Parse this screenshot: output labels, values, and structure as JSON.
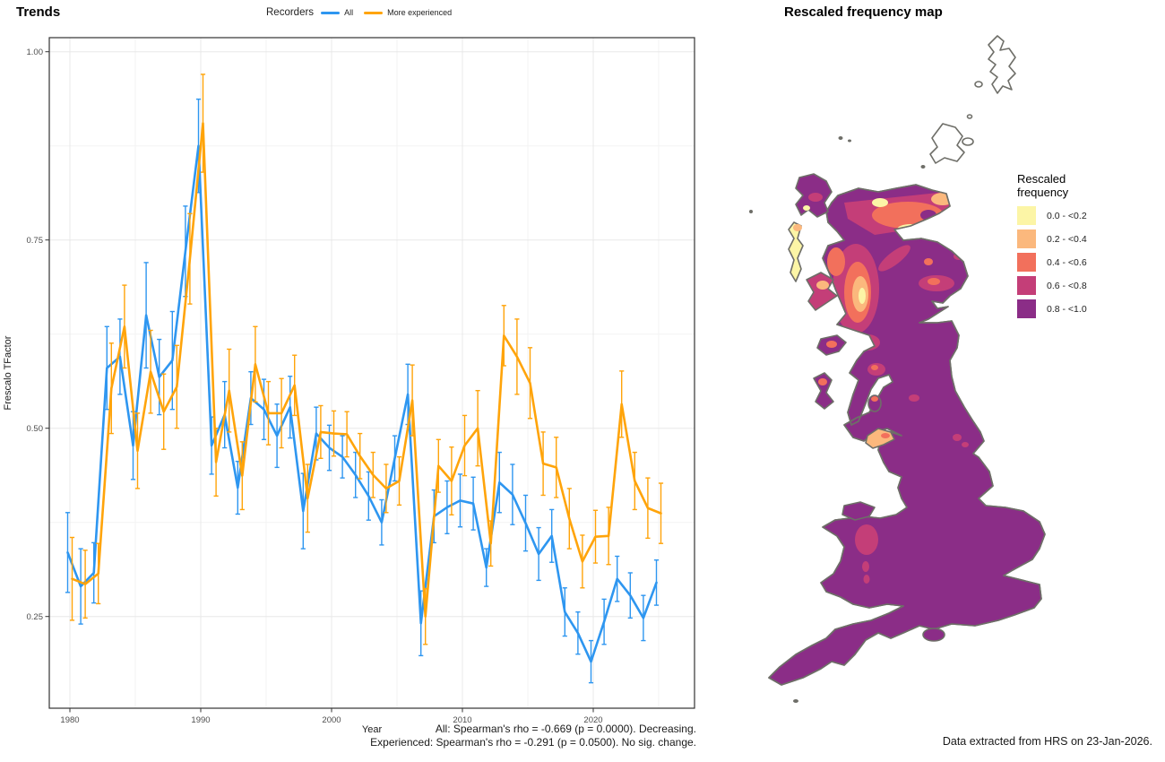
{
  "trends": {
    "title": "Trends",
    "legend": {
      "title": "Recorders",
      "items": [
        {
          "label": "All",
          "color": "#2E96F0"
        },
        {
          "label": "More experienced",
          "color": "#FFA40A"
        }
      ]
    },
    "x_label": "Year",
    "y_label": "Frescalo TFactor",
    "caption_lines": [
      "All: Spearman's rho = -0.669 (p = 0.0000). Decreasing.",
      "Experienced: Spearman's rho = -0.291 (p = 0.0500). No sig. change."
    ]
  },
  "chart_data": {
    "type": "line",
    "title": "Trends",
    "xlabel": "Year",
    "ylabel": "Frescalo TFactor",
    "grid": "major+minor",
    "legend_position": "top",
    "xlim": [
      1978.4,
      2027.7
    ],
    "ylim": [
      0.128,
      1.019
    ],
    "x_ticks": [
      1980,
      1990,
      2000,
      2010,
      2020
    ],
    "x_minor_ticks": [
      1985,
      1995,
      2005,
      2015,
      2025
    ],
    "y_ticks": [
      0.25,
      0.5,
      0.75,
      1.0
    ],
    "y_minor_ticks": [
      0.375,
      0.625,
      0.875
    ],
    "x": [
      1980,
      1981,
      1982,
      1983,
      1984,
      1985,
      1986,
      1987,
      1988,
      1989,
      1990,
      1991,
      1992,
      1993,
      1994,
      1995,
      1996,
      1997,
      1998,
      1999,
      2000,
      2001,
      2002,
      2003,
      2004,
      2005,
      2006,
      2007,
      2008,
      2009,
      2010,
      2011,
      2012,
      2013,
      2014,
      2015,
      2016,
      2017,
      2018,
      2019,
      2020,
      2021,
      2022,
      2023,
      2024,
      2025
    ],
    "series": [
      {
        "name": "All",
        "color": "#2E96F0",
        "values": [
          0.335,
          0.29,
          0.308,
          0.58,
          0.595,
          0.477,
          0.65,
          0.568,
          0.59,
          0.735,
          0.875,
          0.477,
          0.518,
          0.421,
          0.54,
          0.525,
          0.49,
          0.528,
          0.39,
          0.493,
          0.474,
          0.462,
          0.438,
          0.41,
          0.375,
          0.46,
          0.545,
          0.241,
          0.383,
          0.395,
          0.404,
          0.4,
          0.315,
          0.428,
          0.412,
          0.374,
          0.333,
          0.357,
          0.256,
          0.228,
          0.19,
          0.243,
          0.3,
          0.278,
          0.248,
          0.295
        ],
        "ci_half": [
          0.053,
          0.05,
          0.04,
          0.055,
          0.05,
          0.045,
          0.07,
          0.05,
          0.065,
          0.06,
          0.062,
          0.038,
          0.044,
          0.035,
          0.035,
          0.04,
          0.042,
          0.041,
          0.05,
          0.035,
          0.03,
          0.028,
          0.03,
          0.032,
          0.03,
          0.03,
          0.04,
          0.043,
          0.035,
          0.035,
          0.035,
          0.035,
          0.025,
          0.04,
          0.04,
          0.037,
          0.035,
          0.035,
          0.032,
          0.028,
          0.028,
          0.03,
          0.03,
          0.03,
          0.03,
          0.03
        ]
      },
      {
        "name": "More experienced",
        "color": "#FFA40A",
        "values": [
          0.3,
          0.293,
          0.307,
          0.553,
          0.635,
          0.47,
          0.575,
          0.522,
          0.555,
          0.725,
          0.905,
          0.455,
          0.55,
          0.437,
          0.585,
          0.52,
          0.52,
          0.557,
          0.407,
          0.495,
          0.493,
          0.492,
          0.463,
          0.438,
          0.42,
          0.43,
          0.537,
          0.25,
          0.45,
          0.43,
          0.477,
          0.5,
          0.347,
          0.623,
          0.595,
          0.56,
          0.453,
          0.448,
          0.38,
          0.323,
          0.356,
          0.357,
          0.532,
          0.43,
          0.394,
          0.387
        ],
        "ci_half": [
          0.055,
          0.045,
          0.04,
          0.06,
          0.055,
          0.05,
          0.055,
          0.05,
          0.055,
          0.06,
          0.065,
          0.045,
          0.055,
          0.045,
          0.05,
          0.042,
          0.046,
          0.04,
          0.045,
          0.035,
          0.03,
          0.03,
          0.03,
          0.03,
          0.032,
          0.032,
          0.047,
          0.037,
          0.035,
          0.045,
          0.04,
          0.05,
          0.03,
          0.04,
          0.05,
          0.047,
          0.042,
          0.04,
          0.04,
          0.035,
          0.035,
          0.038,
          0.044,
          0.038,
          0.04,
          0.04
        ]
      }
    ],
    "annotation": "All: Spearman's rho = -0.669 (p = 0.0000). Decreasing. | Experienced: Spearman's rho = -0.291 (p = 0.0500). No sig. change."
  },
  "map": {
    "title": "Rescaled frequency map",
    "legend_title": "Rescaled frequency",
    "legend_items": [
      {
        "label": "0.0 - <0.2",
        "color": "#FCF5A6"
      },
      {
        "label": "0.2 - <0.4",
        "color": "#FBB87D"
      },
      {
        "label": "0.4 - <0.6",
        "color": "#F2705C"
      },
      {
        "label": "0.6 - <0.8",
        "color": "#C43E78"
      },
      {
        "label": "0.8 - <1.0",
        "color": "#8B2D87"
      }
    ],
    "caption": "Data extracted from HRS on 23-Jan-2026.",
    "coast_color": "#6E6E68",
    "base_fill": "#8B2D87"
  },
  "axis_style": {
    "tick_label_color": "#4D4D4D",
    "axis_title_color": "#1a1a1a",
    "panel_border_color": "#333333",
    "grid_major_color": "#E8E8E8",
    "grid_minor_color": "#F3F3F3"
  }
}
